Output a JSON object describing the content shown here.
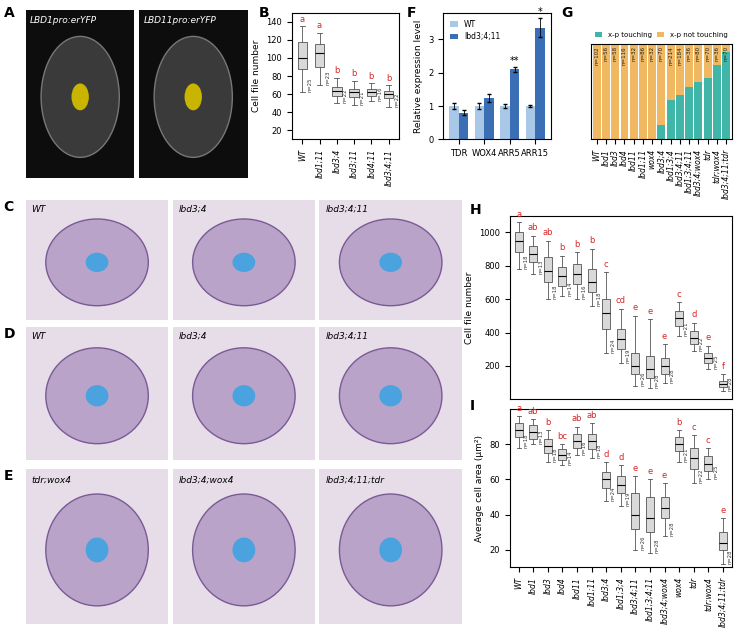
{
  "chart_data": [
    {
      "type": "image",
      "panel_label": "A",
      "labels": [
        "LBD1pro:erYFP",
        "LBD11pro:erYFP"
      ]
    },
    {
      "type": "box",
      "panel_label": "B",
      "ylabel": "Cell file number",
      "categories": [
        "WT",
        "lbd1;11",
        "lbd3;4",
        "lbd3;11",
        "lbd4;11",
        "lbd3;4;11"
      ],
      "boxes": [
        {
          "median": 100,
          "q1": 88,
          "q3": 118,
          "whislo": 62,
          "whishi": 135
        },
        {
          "median": 105,
          "q1": 90,
          "q3": 115,
          "whislo": 70,
          "whishi": 128
        },
        {
          "median": 63,
          "q1": 58,
          "q3": 68,
          "whislo": 50,
          "whishi": 78
        },
        {
          "median": 62,
          "q1": 57,
          "q3": 66,
          "whislo": 48,
          "whishi": 75
        },
        {
          "median": 62,
          "q1": 58,
          "q3": 66,
          "whislo": 52,
          "whishi": 72
        },
        {
          "median": 60,
          "q1": 56,
          "q3": 64,
          "whislo": 46,
          "whishi": 70
        }
      ],
      "letters": [
        "a",
        "a",
        "b",
        "b",
        "b",
        "b"
      ],
      "n_labels": [
        "n=25",
        "n=23",
        "n=22",
        "n=21",
        "n=16",
        "n=22"
      ],
      "color": "#d9d9d9",
      "ylim": [
        10,
        150
      ],
      "yticks": [
        20,
        40,
        60,
        80,
        100,
        120,
        140
      ]
    },
    {
      "type": "bar",
      "panel_label": "F",
      "ylabel": "Relative expression level",
      "categories": [
        "TDR",
        "WOX4",
        "ARR5",
        "ARR15"
      ],
      "series": [
        {
          "name": "WT",
          "color": "#a9c8e8",
          "values": [
            1,
            1,
            1,
            1
          ],
          "errors": [
            0.08,
            0.1,
            0.06,
            0.04
          ]
        },
        {
          "name": "lbd3;4;11",
          "color": "#3a6eb5",
          "values": [
            0.8,
            1.25,
            2.1,
            3.35
          ],
          "errors": [
            0.07,
            0.12,
            0.08,
            0.28
          ]
        }
      ],
      "annotations": [
        {
          "category": "ARR5",
          "text": "**"
        },
        {
          "category": "ARR15",
          "text": "*"
        }
      ],
      "legend": "upper left",
      "ylim": [
        0,
        3.8
      ],
      "yticks": [
        0,
        1,
        2,
        3
      ]
    },
    {
      "type": "bar",
      "stacked": true,
      "panel_label": "G",
      "categories": [
        "WT",
        "lbd1",
        "lbd3",
        "lbd4",
        "lbd11",
        "lbd1;11",
        "wox4",
        "lbd3;4",
        "lbd1;3;4",
        "lbd3;4;11",
        "lbd1;3;4;11",
        "lbd3;4;wox4",
        "tdr",
        "tdr;wox4",
        "lbd3;4;11;tdr"
      ],
      "series": [
        {
          "name": "x-p touching",
          "color": "#3fb6a8",
          "values": [
            0,
            0,
            0,
            0,
            0,
            0,
            0,
            15,
            42,
            47,
            55,
            60,
            65,
            78,
            92
          ]
        },
        {
          "name": "x-p not touching",
          "color": "#f0b860",
          "values": [
            100,
            100,
            100,
            100,
            100,
            100,
            100,
            85,
            58,
            53,
            45,
            40,
            35,
            22,
            8
          ]
        }
      ],
      "n_labels": [
        "n=102",
        "n=56",
        "n=58",
        "n=116",
        "n=32",
        "n=86",
        "n=32",
        "n=70",
        "n=214",
        "n=184",
        "n=36",
        "n=80",
        "n=70",
        "n=36",
        "n=70"
      ],
      "legend": "upper center",
      "tick_labels": "x",
      "ylim": [
        0,
        100
      ]
    },
    {
      "type": "image",
      "panel_label": "C",
      "labels": [
        "WT",
        "lbd3;4",
        "lbd3;4;11"
      ]
    },
    {
      "type": "image",
      "panel_label": "D",
      "labels": [
        "WT",
        "lbd3;4",
        "lbd3;4;11"
      ]
    },
    {
      "type": "image",
      "panel_label": "E",
      "labels": [
        "tdr;wox4",
        "lbd3;4;wox4",
        "lbd3;4;11;tdr"
      ]
    },
    {
      "type": "box",
      "panel_label": "H",
      "ylabel": "Cell file number",
      "categories": [
        null,
        null,
        null,
        null,
        null,
        null,
        null,
        null,
        null,
        null,
        null,
        null,
        null,
        null,
        null
      ],
      "boxes": [
        {
          "median": 950,
          "q1": 880,
          "q3": 1000,
          "whislo": 780,
          "whishi": 1060
        },
        {
          "median": 870,
          "q1": 820,
          "q3": 920,
          "whislo": 750,
          "whishi": 980
        },
        {
          "median": 770,
          "q1": 700,
          "q3": 850,
          "whislo": 600,
          "whishi": 950
        },
        {
          "median": 740,
          "q1": 680,
          "q3": 790,
          "whislo": 620,
          "whishi": 860
        },
        {
          "median": 750,
          "q1": 690,
          "q3": 810,
          "whislo": 600,
          "whishi": 880
        },
        {
          "median": 700,
          "q1": 640,
          "q3": 780,
          "whislo": 560,
          "whishi": 900
        },
        {
          "median": 520,
          "q1": 420,
          "q3": 600,
          "whislo": 280,
          "whishi": 760
        },
        {
          "median": 360,
          "q1": 300,
          "q3": 420,
          "whislo": 220,
          "whishi": 540
        },
        {
          "median": 200,
          "q1": 150,
          "q3": 280,
          "whislo": 80,
          "whishi": 500
        },
        {
          "median": 180,
          "q1": 130,
          "q3": 260,
          "whislo": 70,
          "whishi": 480
        },
        {
          "median": 200,
          "q1": 150,
          "q3": 250,
          "whislo": 100,
          "whishi": 330
        },
        {
          "median": 490,
          "q1": 440,
          "q3": 530,
          "whislo": 380,
          "whishi": 580
        },
        {
          "median": 370,
          "q1": 330,
          "q3": 410,
          "whislo": 290,
          "whishi": 460
        },
        {
          "median": 250,
          "q1": 220,
          "q3": 280,
          "whislo": 180,
          "whishi": 320
        },
        {
          "median": 90,
          "q1": 75,
          "q3": 110,
          "whislo": 50,
          "whishi": 150
        }
      ],
      "letters": [
        "a",
        "ab",
        "ab",
        "b",
        "b",
        "b",
        "c",
        "cd",
        "e",
        "e",
        "e",
        "c",
        "d",
        "e",
        "f"
      ],
      "n_labels": [
        "n=18",
        "n=13",
        "n=18",
        "n=14",
        "n=16",
        "n=18",
        "n=24",
        "n=19",
        "n=26",
        "n=28",
        "n=28",
        "n=21",
        "n=22",
        "n=25",
        "n=28"
      ],
      "color": "#d9d9d9",
      "ylim": [
        0,
        1100
      ],
      "yticks": [
        200,
        400,
        600,
        800,
        1000
      ]
    },
    {
      "type": "box",
      "panel_label": "I",
      "ylabel": "Average cell area (µm²)",
      "categories": [
        "WT",
        "lbd1",
        "lbd3",
        "lbd4",
        "lbd11",
        "lbd1;11",
        "lbd3;4",
        "lbd1;3;4",
        "lbd3;4;11",
        "lbd1;3;4;11",
        "lbd3;4;wox4",
        "wox4",
        "tdr",
        "tdr;wox4",
        "lbd3;4;11;tdr"
      ],
      "boxes": [
        {
          "median": 88,
          "q1": 84,
          "q3": 92,
          "whislo": 78,
          "whishi": 96
        },
        {
          "median": 87,
          "q1": 83,
          "q3": 91,
          "whislo": 80,
          "whishi": 94
        },
        {
          "median": 79,
          "q1": 75,
          "q3": 83,
          "whislo": 70,
          "whishi": 88
        },
        {
          "median": 74,
          "q1": 71,
          "q3": 77,
          "whislo": 68,
          "whishi": 80
        },
        {
          "median": 82,
          "q1": 78,
          "q3": 86,
          "whislo": 74,
          "whishi": 90
        },
        {
          "median": 82,
          "q1": 77,
          "q3": 86,
          "whislo": 72,
          "whishi": 92
        },
        {
          "median": 60,
          "q1": 55,
          "q3": 64,
          "whislo": 48,
          "whishi": 70
        },
        {
          "median": 57,
          "q1": 52,
          "q3": 62,
          "whislo": 45,
          "whishi": 68
        },
        {
          "median": 40,
          "q1": 32,
          "q3": 52,
          "whislo": 20,
          "whishi": 62
        },
        {
          "median": 38,
          "q1": 30,
          "q3": 50,
          "whislo": 18,
          "whishi": 60
        },
        {
          "median": 44,
          "q1": 38,
          "q3": 50,
          "whislo": 28,
          "whishi": 58
        },
        {
          "median": 80,
          "q1": 76,
          "q3": 84,
          "whislo": 70,
          "whishi": 88
        },
        {
          "median": 72,
          "q1": 66,
          "q3": 78,
          "whislo": 58,
          "whishi": 85
        },
        {
          "median": 69,
          "q1": 65,
          "q3": 73,
          "whislo": 60,
          "whishi": 78
        },
        {
          "median": 24,
          "q1": 20,
          "q3": 30,
          "whislo": 12,
          "whishi": 38
        }
      ],
      "letters": [
        "a",
        "ab",
        "b",
        "bc",
        "ab",
        "ab",
        "d",
        "d",
        "e",
        "e",
        "e",
        "b",
        "c",
        "c",
        "e"
      ],
      "n_labels": [
        "n=18",
        "n=13",
        "n=18",
        "n=14",
        "n=16",
        "n=18",
        "n=24",
        "n=19",
        "n=26",
        "n=28",
        "n=28",
        "n=21",
        "n=22",
        "n=25",
        "n=28"
      ],
      "color": "#d9d9d9",
      "ylim": [
        10,
        100
      ],
      "yticks": [
        20,
        40,
        60,
        80
      ]
    }
  ]
}
